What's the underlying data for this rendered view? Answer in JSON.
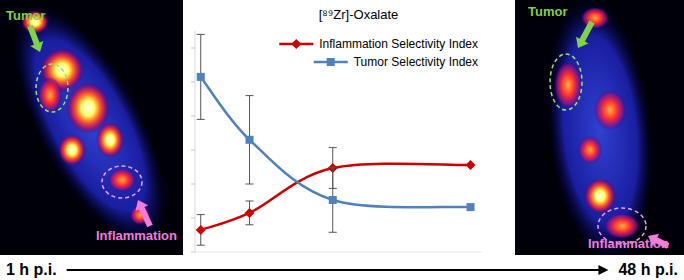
{
  "chart_data": {
    "type": "line",
    "title": "[⁸⁹Zr]-Oxalate",
    "x": [
      1,
      9.5,
      24,
      48
    ],
    "xlim": [
      0,
      50
    ],
    "ylim": [
      0,
      6.5
    ],
    "yticks": [
      0,
      1,
      2,
      3,
      4,
      5,
      6
    ],
    "tick_labels": false,
    "grid": false,
    "legend": "top-right",
    "series": [
      {
        "name": "Inflammation Selectivity Index",
        "color": "#cc0000",
        "marker": "diamond",
        "line_style": "solid",
        "values": [
          0.65,
          1.15,
          2.47,
          2.56
        ],
        "errors": [
          0.45,
          0.35,
          0.6,
          0
        ]
      },
      {
        "name": "Tumor Selectivity Index",
        "color": "#4f81bd",
        "marker": "square",
        "line_style": "solid",
        "values": [
          5.15,
          3.3,
          1.53,
          1.32
        ],
        "errors": [
          1.25,
          1.3,
          0.95,
          0
        ]
      }
    ]
  },
  "panels": [
    {
      "time": "1 h p.i.",
      "labels": [
        "Tumor",
        "Inflammation"
      ]
    },
    {
      "time": "48 h p.i.",
      "labels": [
        "Tumor",
        "Inflammation"
      ]
    }
  ]
}
